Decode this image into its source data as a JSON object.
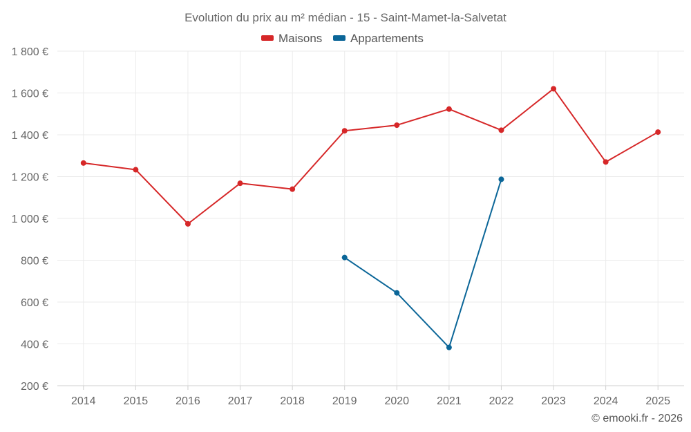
{
  "chart_data": {
    "type": "line",
    "title": "Evolution du prix au m² médian - 15 - Saint-Mamet-la-Salvetat",
    "categories": [
      "2014",
      "2015",
      "2016",
      "2017",
      "2018",
      "2019",
      "2020",
      "2021",
      "2022",
      "2023",
      "2024",
      "2025"
    ],
    "series": [
      {
        "name": "Maisons",
        "color": "#d62728",
        "values": [
          1265,
          1233,
          974,
          1168,
          1140,
          1419,
          1446,
          1523,
          1422,
          1620,
          1270,
          1413
        ]
      },
      {
        "name": "Appartements",
        "color": "#0b6698",
        "values": [
          null,
          null,
          null,
          null,
          null,
          813,
          644,
          383,
          1187,
          null,
          null,
          null
        ]
      }
    ],
    "ylim": [
      200,
      1800
    ],
    "yticks": [
      200,
      400,
      600,
      800,
      1000,
      1200,
      1400,
      1600,
      1800
    ],
    "ytick_labels": [
      "200 €",
      "400 €",
      "600 €",
      "800 €",
      "1 000 €",
      "1 200 €",
      "1 400 €",
      "1 600 €",
      "1 800 €"
    ],
    "grid": true,
    "legend_position": "top-center"
  },
  "credit": "© emooki.fr - 2026"
}
